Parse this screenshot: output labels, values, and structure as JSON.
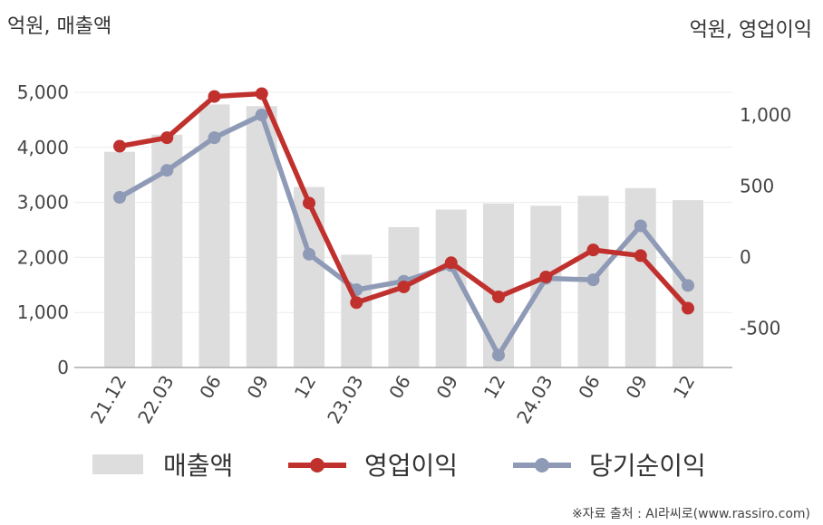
{
  "chart_data": {
    "type": "bar+line",
    "left_axis_label": "억원, 매출액",
    "right_axis_label": "억원, 영업이익",
    "categories": [
      "21.12",
      "22.03",
      "06",
      "09",
      "12",
      "23.03",
      "06",
      "09",
      "12",
      "24.03",
      "06",
      "09",
      "12"
    ],
    "left_axis": {
      "ylim": [
        0,
        5000
      ],
      "ticks": [
        0,
        1000,
        2000,
        3000,
        4000,
        5000
      ],
      "tick_labels": [
        "0",
        "1,000",
        "2,000",
        "3,000",
        "4,000",
        "5,000"
      ]
    },
    "right_axis": {
      "ylim": [
        -800,
        1300
      ],
      "ticks": [
        -500,
        0,
        500,
        1000
      ],
      "tick_labels": [
        "-500",
        "0",
        "500",
        "1,000"
      ]
    },
    "series": [
      {
        "name": "매출액",
        "type": "bar",
        "axis": "left",
        "color": "#dddddd",
        "values": [
          3920,
          4230,
          4780,
          4750,
          3280,
          2050,
          2550,
          2870,
          2980,
          2940,
          3120,
          3260,
          3040
        ]
      },
      {
        "name": "영업이익",
        "type": "line",
        "axis": "right",
        "color": "#c0312e",
        "values": [
          780,
          840,
          1130,
          1150,
          380,
          -320,
          -210,
          -40,
          -280,
          -140,
          50,
          10,
          -360
        ]
      },
      {
        "name": "당기순이익",
        "type": "line",
        "axis": "right",
        "color": "#8e9ab6",
        "values": [
          420,
          610,
          840,
          1000,
          20,
          -230,
          -170,
          -60,
          -690,
          -150,
          -160,
          220,
          -200
        ]
      }
    ],
    "grid": true,
    "legend": "bottom"
  },
  "footer": {
    "source": "※자료 출처 : AI라씨로(www.rassiro.com)"
  }
}
